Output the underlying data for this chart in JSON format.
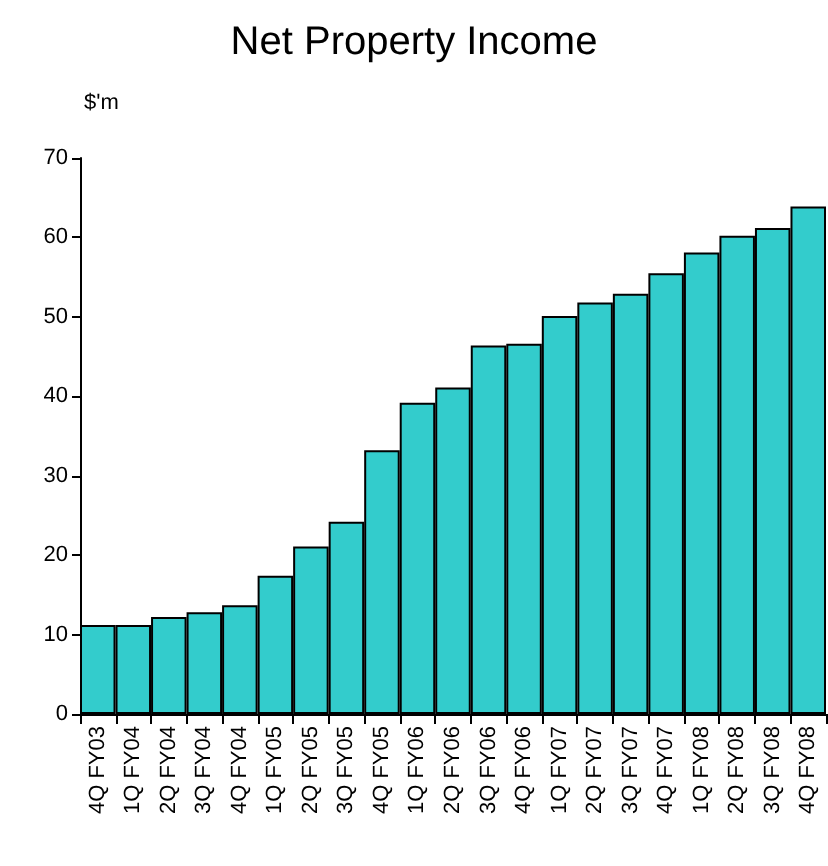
{
  "chart_data": {
    "type": "bar",
    "title": "Net Property Income",
    "ylabel": "$'m",
    "categories": [
      "4Q FY03",
      "1Q FY04",
      "2Q FY04",
      "3Q FY04",
      "4Q FY04",
      "1Q FY05",
      "2Q FY05",
      "3Q FY05",
      "4Q FY05",
      "1Q FY06",
      "2Q FY06",
      "3Q FY06",
      "4Q FY06",
      "1Q FY07",
      "2Q FY07",
      "3Q FY07",
      "4Q FY07",
      "1Q FY08",
      "2Q FY08",
      "3Q FY08",
      "4Q FY08"
    ],
    "values": [
      11.2,
      11.2,
      12.2,
      12.8,
      13.7,
      17.4,
      21.1,
      24.2,
      33.2,
      39.2,
      41.1,
      46.4,
      46.6,
      50.1,
      51.8,
      52.9,
      55.5,
      58.1,
      60.2,
      61.2,
      63.9
    ],
    "color": "#33cccc",
    "ylim": [
      0,
      70
    ],
    "yticks": [
      0,
      10,
      20,
      30,
      40,
      50,
      60,
      70
    ],
    "grid": false
  }
}
